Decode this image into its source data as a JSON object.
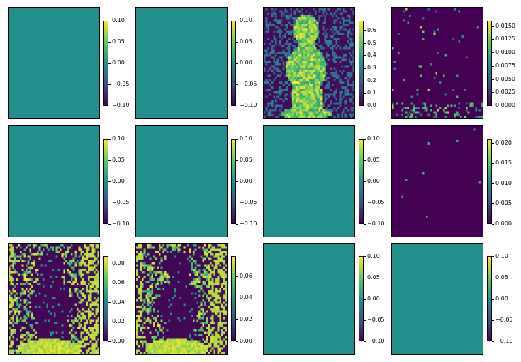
{
  "colormap": [
    "#440154",
    "#3b528b",
    "#21908d",
    "#5dc963",
    "#fde725"
  ],
  "chart_data": {
    "type": "heatmap",
    "grid": {
      "rows": 3,
      "cols": 4
    },
    "panels": [
      {
        "kind": "uniform",
        "vmin": -0.1,
        "vmax": 0.1,
        "ticks": [
          "0.10",
          "0.05",
          "0.00",
          "−0.05",
          "−0.10"
        ]
      },
      {
        "kind": "uniform",
        "vmin": -0.1,
        "vmax": 0.1,
        "ticks": [
          "0.10",
          "0.05",
          "0.00",
          "−0.05",
          "−0.10"
        ]
      },
      {
        "kind": "dog",
        "vmin": 0.0,
        "vmax": 0.68,
        "ticks": [
          "0.6",
          "0.5",
          "0.4",
          "0.3",
          "0.2",
          "0.1",
          "0.0"
        ]
      },
      {
        "kind": "sparse-bottom",
        "vmin": 0.0,
        "vmax": 0.016,
        "ticks": [
          "0.0150",
          "0.0125",
          "0.0100",
          "0.0075",
          "0.0050",
          "0.0025",
          "0.0000"
        ]
      },
      {
        "kind": "uniform",
        "vmin": -0.1,
        "vmax": 0.1,
        "ticks": [
          "0.10",
          "0.05",
          "0.00",
          "−0.05",
          "−0.10"
        ]
      },
      {
        "kind": "uniform",
        "vmin": -0.1,
        "vmax": 0.1,
        "ticks": [
          "0.10",
          "0.05",
          "0.00",
          "−0.05",
          "−0.10"
        ]
      },
      {
        "kind": "uniform",
        "vmin": -0.1,
        "vmax": 0.1,
        "ticks": [
          "0.10",
          "0.05",
          "0.00",
          "−0.05",
          "−0.10"
        ]
      },
      {
        "kind": "few-dots",
        "vmin": 0.0,
        "vmax": 0.021,
        "ticks": [
          "0.020",
          "0.015",
          "0.010",
          "0.005",
          "0.000"
        ]
      },
      {
        "kind": "dog-inverse",
        "vmin": 0.0,
        "vmax": 0.087,
        "ticks": [
          "0.08",
          "0.06",
          "0.04",
          "0.02",
          "0.00"
        ]
      },
      {
        "kind": "dog-inverse",
        "vmin": 0.0,
        "vmax": 0.078,
        "ticks": [
          "0.06",
          "0.04",
          "0.02",
          "0.00"
        ]
      },
      {
        "kind": "uniform",
        "vmin": -0.1,
        "vmax": 0.1,
        "ticks": [
          "0.10",
          "0.05",
          "0.00",
          "−0.05",
          "−0.10"
        ]
      },
      {
        "kind": "uniform",
        "vmin": -0.1,
        "vmax": 0.1,
        "ticks": [
          "0.10",
          "0.05",
          "0.00",
          "−0.05",
          "−0.10"
        ]
      }
    ]
  }
}
